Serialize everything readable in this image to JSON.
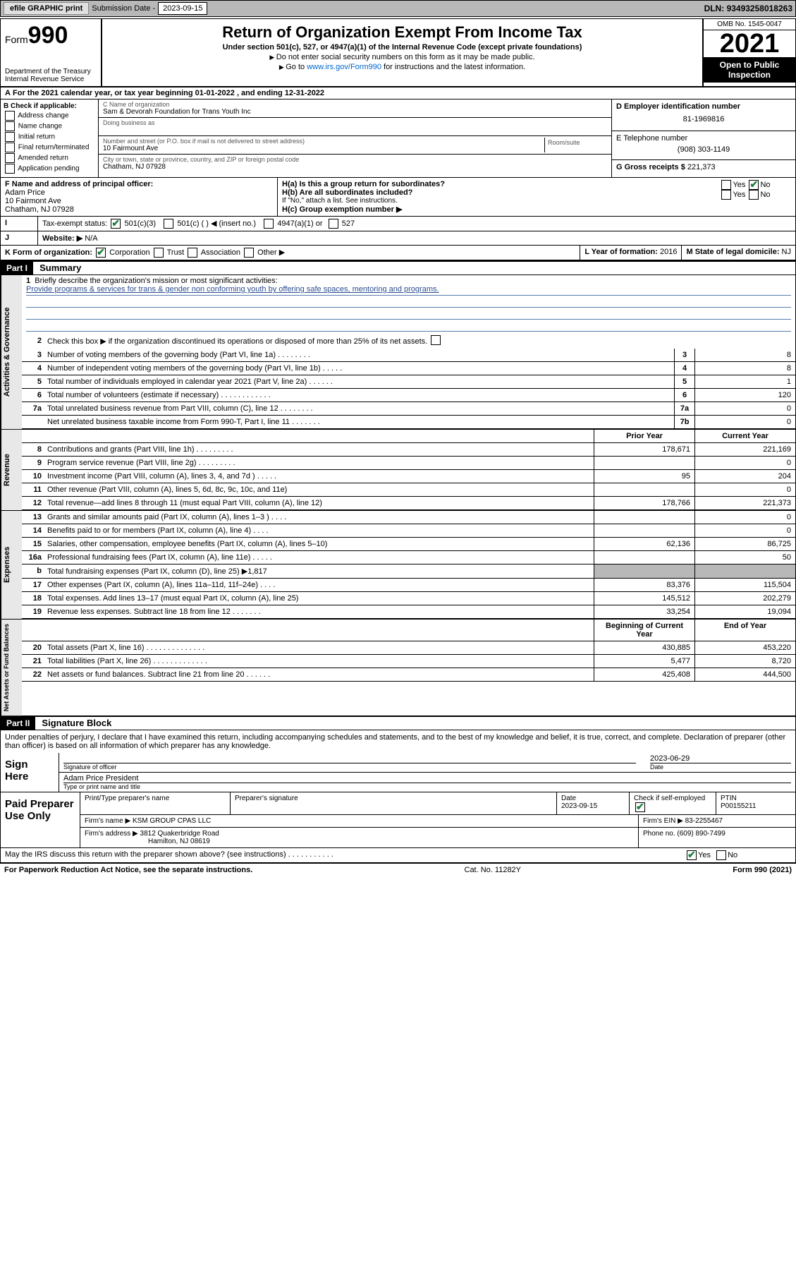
{
  "topbar": {
    "efile": "efile GRAPHIC print",
    "sub_label": "Submission Date - ",
    "sub_date": "2023-09-15",
    "dln_label": "DLN: ",
    "dln": "93493258018263"
  },
  "header": {
    "form_label": "Form",
    "form_num": "990",
    "dept": "Department of the Treasury\nInternal Revenue Service",
    "title": "Return of Organization Exempt From Income Tax",
    "sub": "Under section 501(c), 527, or 4947(a)(1) of the Internal Revenue Code (except private foundations)",
    "note1": "Do not enter social security numbers on this form as it may be made public.",
    "note2_pre": "Go to ",
    "note2_link": "www.irs.gov/Form990",
    "note2_post": " for instructions and the latest information.",
    "omb": "OMB No. 1545-0047",
    "year": "2021",
    "opi": "Open to Public Inspection"
  },
  "line_a": "For the 2021 calendar year, or tax year beginning 01-01-2022     , and ending 12-31-2022",
  "block_b": {
    "title": "B Check if applicable:",
    "opts": [
      "Address change",
      "Name change",
      "Initial return",
      "Final return/terminated",
      "Amended return",
      "Application pending"
    ],
    "c_label": "C Name of organization",
    "c_name": "Sam & Devorah Foundation for Trans Youth Inc",
    "dba_label": "Doing business as",
    "dba": "",
    "street_label": "Number and street (or P.O. box if mail is not delivered to street address)",
    "street": "10 Fairmount Ave",
    "room_label": "Room/suite",
    "city_label": "City or town, state or province, country, and ZIP or foreign postal code",
    "city": "Chatham, NJ  07928",
    "d_label": "D Employer identification number",
    "d_ein": "81-1969816",
    "e_label": "E Telephone number",
    "e_phone": "(908) 303-1149",
    "g_label": "G Gross receipts $ ",
    "g_val": "221,373"
  },
  "fh": {
    "f_label": "F Name and address of principal officer:",
    "f_name": "Adam Price",
    "f_addr1": "10 Fairmont Ave",
    "f_addr2": "Chatham, NJ  07928",
    "ha": "H(a)  Is this a group return for subordinates?",
    "ha_yes": "Yes",
    "ha_no": "No",
    "hb": "H(b)  Are all subordinates included?",
    "hb_note": "If \"No,\" attach a list. See instructions.",
    "hc": "H(c)  Group exemption number ▶"
  },
  "ijk": {
    "i_label": "Tax-exempt status:",
    "i_opts": [
      "501(c)(3)",
      "501(c) (   ) ◀ (insert no.)",
      "4947(a)(1) or",
      "527"
    ],
    "j_label": "Website: ▶",
    "j_val": "N/A",
    "k_label": "K Form of organization:",
    "k_opts": [
      "Corporation",
      "Trust",
      "Association",
      "Other ▶"
    ],
    "l_label": "L Year of formation: ",
    "l_val": "2016",
    "m_label": "M State of legal domicile: ",
    "m_val": "NJ"
  },
  "part1": {
    "bar": "Part I",
    "title": "Summary",
    "q1_label": "Briefly describe the organization's mission or most significant activities:",
    "q1_text": "Provide programs & services for trans & gender non conforming youth by offering safe spaces, mentoring and programs.",
    "q2": "Check this box ▶         if the organization discontinued its operations or disposed of more than 25% of its net assets.",
    "rows_gov": [
      {
        "n": "3",
        "d": "Number of voting members of the governing body (Part VI, line 1a)   .   .   .   .   .   .   .   .",
        "b": "3",
        "v": "8"
      },
      {
        "n": "4",
        "d": "Number of independent voting members of the governing body (Part VI, line 1b)    .   .   .   .   .",
        "b": "4",
        "v": "8"
      },
      {
        "n": "5",
        "d": "Total number of individuals employed in calendar year 2021 (Part V, line 2a)   .   .   .   .   .   .",
        "b": "5",
        "v": "1"
      },
      {
        "n": "6",
        "d": "Total number of volunteers (estimate if necessary)   .   .   .   .   .   .   .   .   .   .   .   .",
        "b": "6",
        "v": "120"
      },
      {
        "n": "7a",
        "d": "Total unrelated business revenue from Part VIII, column (C), line 12   .   .   .   .   .   .   .   .",
        "b": "7a",
        "v": "0"
      },
      {
        "n": "",
        "d": "Net unrelated business taxable income from Form 990-T, Part I, line 11   .   .   .   .   .   .   .",
        "b": "7b",
        "v": "0"
      }
    ],
    "hdr_prior": "Prior Year",
    "hdr_curr": "Current Year",
    "hdr_boy": "Beginning of Current Year",
    "hdr_eoy": "End of Year",
    "rows_rev": [
      {
        "n": "8",
        "d": "Contributions and grants (Part VIII, line 1h)   .   .   .   .   .   .   .   .   .",
        "p": "178,671",
        "c": "221,169"
      },
      {
        "n": "9",
        "d": "Program service revenue (Part VIII, line 2g)   .   .   .   .   .   .   .   .   .",
        "p": "",
        "c": "0"
      },
      {
        "n": "10",
        "d": "Investment income (Part VIII, column (A), lines 3, 4, and 7d )   .   .   .   .   .",
        "p": "95",
        "c": "204"
      },
      {
        "n": "11",
        "d": "Other revenue (Part VIII, column (A), lines 5, 6d, 8c, 9c, 10c, and 11e)",
        "p": "",
        "c": "0"
      },
      {
        "n": "12",
        "d": "Total revenue—add lines 8 through 11 (must equal Part VIII, column (A), line 12)",
        "p": "178,766",
        "c": "221,373"
      }
    ],
    "rows_exp": [
      {
        "n": "13",
        "d": "Grants and similar amounts paid (Part IX, column (A), lines 1–3 )   .   .   .   .",
        "p": "",
        "c": "0"
      },
      {
        "n": "14",
        "d": "Benefits paid to or for members (Part IX, column (A), line 4)   .   .   .   .",
        "p": "",
        "c": "0"
      },
      {
        "n": "15",
        "d": "Salaries, other compensation, employee benefits (Part IX, column (A), lines 5–10)",
        "p": "62,136",
        "c": "86,725"
      },
      {
        "n": "16a",
        "d": "Professional fundraising fees (Part IX, column (A), line 11e)   .   .   .   .   .",
        "p": "",
        "c": "50"
      },
      {
        "n": "b",
        "d": "Total fundraising expenses (Part IX, column (D), line 25) ▶1,817",
        "p": "shade",
        "c": "shade"
      },
      {
        "n": "17",
        "d": "Other expenses (Part IX, column (A), lines 11a–11d, 11f–24e)   .   .   .   .",
        "p": "83,376",
        "c": "115,504"
      },
      {
        "n": "18",
        "d": "Total expenses. Add lines 13–17 (must equal Part IX, column (A), line 25)",
        "p": "145,512",
        "c": "202,279"
      },
      {
        "n": "19",
        "d": "Revenue less expenses. Subtract line 18 from line 12   .   .   .   .   .   .   .",
        "p": "33,254",
        "c": "19,094"
      }
    ],
    "rows_net": [
      {
        "n": "20",
        "d": "Total assets (Part X, line 16)   .   .   .   .   .   .   .   .   .   .   .   .   .   .",
        "p": "430,885",
        "c": "453,220"
      },
      {
        "n": "21",
        "d": "Total liabilities (Part X, line 26)   .   .   .   .   .   .   .   .   .   .   .   .   .",
        "p": "5,477",
        "c": "8,720"
      },
      {
        "n": "22",
        "d": "Net assets or fund balances. Subtract line 21 from line 20   .   .   .   .   .   .",
        "p": "425,408",
        "c": "444,500"
      }
    ],
    "side_gov": "Activities & Governance",
    "side_rev": "Revenue",
    "side_exp": "Expenses",
    "side_net": "Net Assets or Fund Balances"
  },
  "part2": {
    "bar": "Part II",
    "title": "Signature Block",
    "decl": "Under penalties of perjury, I declare that I have examined this return, including accompanying schedules and statements, and to the best of my knowledge and belief, it is true, correct, and complete. Declaration of preparer (other than officer) is based on all information of which preparer has any knowledge.",
    "sign_here": "Sign Here",
    "sig_officer": "Signature of officer",
    "sig_date_label": "Date",
    "sig_date": "2023-06-29",
    "sig_name": "Adam Price  President",
    "sig_name_label": "Type or print name and title",
    "paid": "Paid Preparer Use Only",
    "prep_name_label": "Print/Type preparer's name",
    "prep_sig_label": "Preparer's signature",
    "prep_date_label": "Date",
    "prep_date": "2023-09-15",
    "prep_check": "Check          if self-employed",
    "ptin_label": "PTIN",
    "ptin": "P00155211",
    "firm_name_label": "Firm's name     ▶ ",
    "firm_name": "KSM GROUP CPAS LLC",
    "firm_ein_label": "Firm's EIN ▶ ",
    "firm_ein": "83-2255467",
    "firm_addr_label": "Firm's address ▶ ",
    "firm_addr1": "3812 Quakerbridge Road",
    "firm_addr2": "Hamilton, NJ  08619",
    "firm_phone_label": "Phone no. ",
    "firm_phone": "(609) 890-7499",
    "discuss": "May the IRS discuss this return with the preparer shown above? (see instructions)   .   .   .   .   .   .   .   .   .   .   .",
    "discuss_yes": "Yes",
    "discuss_no": "No"
  },
  "footer": {
    "left": "For Paperwork Reduction Act Notice, see the separate instructions.",
    "mid": "Cat. No. 11282Y",
    "right": "Form 990 (2021)"
  }
}
